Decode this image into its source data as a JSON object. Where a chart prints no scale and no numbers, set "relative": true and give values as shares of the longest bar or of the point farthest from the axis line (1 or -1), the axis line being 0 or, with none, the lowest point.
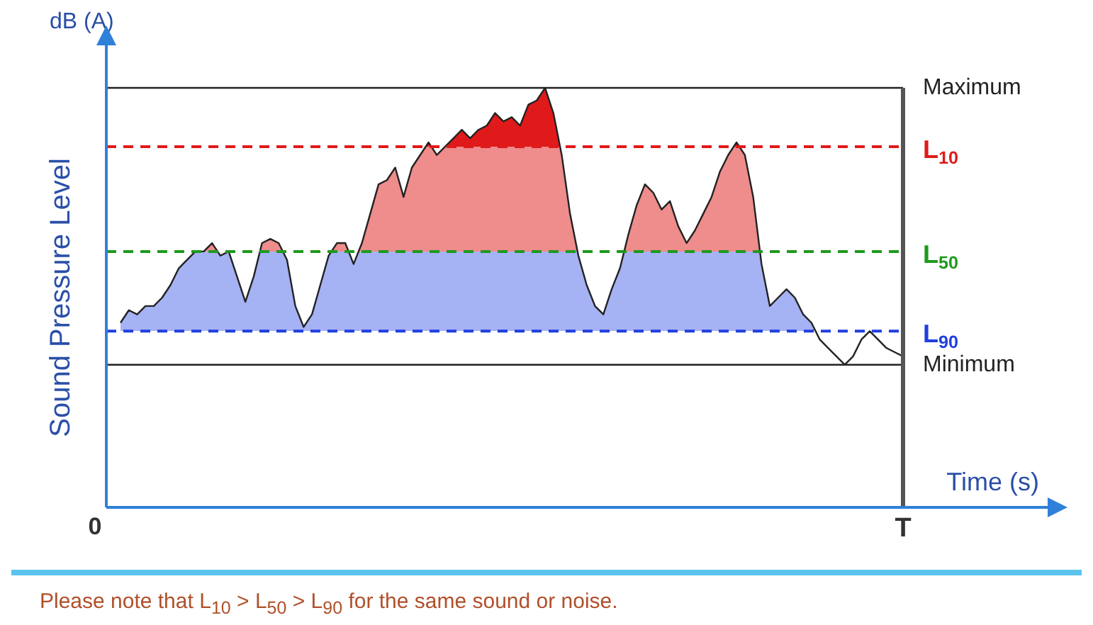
{
  "chart_data": {
    "type": "line",
    "relative": true,
    "ylabel": "Sound Pressure Level",
    "xlabel": "Time (s)",
    "grid": false,
    "legend": false,
    "marker": "none",
    "line_style": "solid",
    "categories": [
      null,
      null,
      null,
      null,
      null,
      null,
      null,
      null,
      null,
      null,
      null,
      null,
      null,
      null,
      null,
      null,
      null,
      null,
      null,
      null,
      null,
      null,
      null,
      null,
      null,
      null,
      null,
      null,
      null,
      null,
      null,
      null,
      null,
      null,
      null,
      null,
      null,
      null,
      null,
      null,
      null,
      null,
      null,
      null,
      null,
      null,
      null,
      null,
      null,
      null,
      null,
      null,
      null,
      null,
      null,
      null,
      null,
      null,
      null,
      null,
      null,
      null,
      null,
      null,
      null,
      null,
      null,
      null,
      null,
      null,
      null,
      null,
      null,
      null,
      null,
      null,
      null,
      null,
      null,
      null,
      null,
      null,
      null,
      null,
      null,
      null,
      null,
      null,
      null,
      null,
      null,
      null,
      null,
      null,
      null
    ],
    "series": [
      {
        "color": "#222222",
        "values": [
          0.44,
          0.47,
          0.46,
          0.48,
          0.48,
          0.5,
          0.53,
          0.57,
          0.59,
          0.61,
          0.61,
          0.63,
          0.6,
          0.61,
          0.55,
          0.49,
          0.55,
          0.63,
          0.64,
          0.63,
          0.59,
          0.48,
          0.43,
          0.46,
          0.53,
          0.6,
          0.63,
          0.63,
          0.58,
          0.63,
          0.7,
          0.77,
          0.78,
          0.81,
          0.74,
          0.81,
          0.84,
          0.87,
          0.84,
          0.86,
          0.88,
          0.9,
          0.88,
          0.9,
          0.91,
          0.94,
          0.92,
          0.93,
          0.91,
          0.96,
          0.97,
          1,
          0.94,
          0.84,
          0.7,
          0.6,
          0.53,
          0.48,
          0.46,
          0.52,
          0.57,
          0.65,
          0.72,
          0.77,
          0.75,
          0.71,
          0.73,
          0.67,
          0.63,
          0.66,
          0.7,
          0.74,
          0.8,
          0.84,
          0.87,
          0.84,
          0.74,
          0.58,
          0.48,
          0.5,
          0.52,
          0.5,
          0.46,
          0.44,
          0.4,
          0.38,
          0.36,
          0.34,
          0.36,
          0.4,
          0.42,
          0.4,
          0.38,
          0.37,
          0.36
        ]
      }
    ],
    "ref_lines": [
      {
        "axis": "y",
        "value": 1,
        "label": "Maximum",
        "color": "#222222",
        "line_style": "solid"
      },
      {
        "axis": "y",
        "value": 0.42,
        "label": "L$_{90}$",
        "color": "#1f3fe0",
        "line_style": "dashed"
      },
      {
        "axis": "y",
        "value": 0.61,
        "label": "L$_{50}$",
        "color": "#1e9a1e",
        "line_style": "dashed"
      },
      {
        "axis": "y",
        "value": 0.86,
        "label": "L$_{10}$",
        "color": "#e01a1a",
        "line_style": "dashed"
      },
      {
        "axis": "y",
        "value": 0.34,
        "label": "Minimum",
        "color": "#222222",
        "line_style": "solid"
      }
    ],
    "annotations": [
      "dB (A)",
      "0",
      "T",
      "Please note that L$_{10}$ > L$_{50}$ > L$_{90}$ for the same sound or noise."
    ]
  }
}
